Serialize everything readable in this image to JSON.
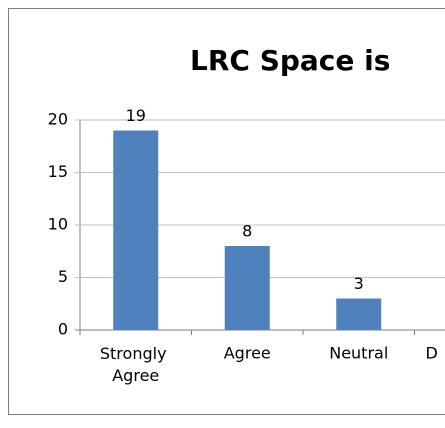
{
  "chart_data": {
    "type": "bar",
    "title": "LRC Space is",
    "categories": [
      "Strongly Agree",
      "Agree",
      "Neutral",
      "D"
    ],
    "values": [
      19,
      8,
      3,
      null
    ],
    "color": "#4f81bd",
    "ylim": [
      0,
      20
    ],
    "yticks": [
      0,
      5,
      10,
      15,
      20
    ],
    "grid": true
  }
}
